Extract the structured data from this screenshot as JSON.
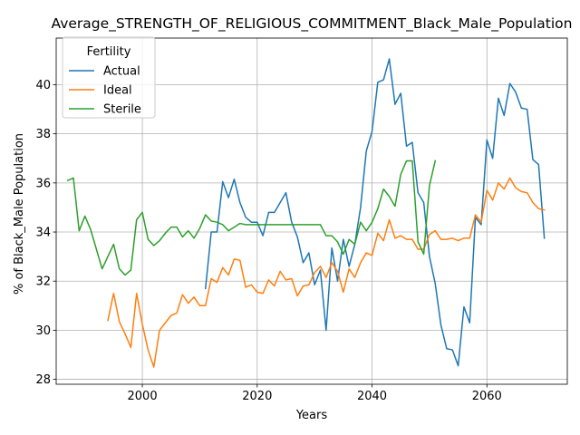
{
  "chart_data": {
    "type": "line",
    "title": "Average_STRENGTH_OF_RELIGIOUS_COMMITMENT_Black_Male_Population",
    "xlabel": "Years",
    "ylabel": "% of Black_Male Population",
    "xlim": [
      1985,
      2074
    ],
    "ylim": [
      27.8,
      41.9
    ],
    "xticks": [
      2000,
      2020,
      2040,
      2060
    ],
    "yticks": [
      28,
      30,
      32,
      34,
      36,
      38,
      40
    ],
    "grid": true,
    "legend": {
      "title": "Fertility",
      "placement": "top-left"
    },
    "series": [
      {
        "name": "Actual",
        "color": "#1f77b4",
        "points": [
          [
            2011,
            31.7
          ],
          [
            2012,
            34.0
          ],
          [
            2013,
            34.0
          ],
          [
            2014,
            36.05
          ],
          [
            2015,
            35.4
          ],
          [
            2016,
            36.15
          ],
          [
            2017,
            35.2
          ],
          [
            2018,
            34.6
          ],
          [
            2019,
            34.4
          ],
          [
            2020,
            34.4
          ],
          [
            2021,
            33.85
          ],
          [
            2022,
            34.8
          ],
          [
            2023,
            34.8
          ],
          [
            2024,
            35.2
          ],
          [
            2025,
            35.6
          ],
          [
            2026,
            34.4
          ],
          [
            2027,
            33.8
          ],
          [
            2028,
            32.75
          ],
          [
            2029,
            33.15
          ],
          [
            2030,
            31.85
          ],
          [
            2031,
            32.45
          ],
          [
            2032,
            30.0
          ],
          [
            2033,
            33.35
          ],
          [
            2034,
            32.0
          ],
          [
            2035,
            33.7
          ],
          [
            2036,
            32.6
          ],
          [
            2037,
            33.5
          ],
          [
            2038,
            35.0
          ],
          [
            2039,
            37.3
          ],
          [
            2040,
            38.1
          ],
          [
            2041,
            40.1
          ],
          [
            2042,
            40.2
          ],
          [
            2043,
            41.05
          ],
          [
            2044,
            39.2
          ],
          [
            2045,
            39.65
          ],
          [
            2046,
            37.5
          ],
          [
            2047,
            37.65
          ],
          [
            2048,
            35.6
          ],
          [
            2049,
            35.2
          ],
          [
            2050,
            33.0
          ],
          [
            2051,
            31.9
          ],
          [
            2052,
            30.2
          ],
          [
            2053,
            29.25
          ],
          [
            2054,
            29.2
          ],
          [
            2055,
            28.55
          ],
          [
            2056,
            30.95
          ],
          [
            2057,
            30.3
          ],
          [
            2058,
            34.6
          ],
          [
            2059,
            34.3
          ],
          [
            2060,
            37.75
          ],
          [
            2061,
            37.0
          ],
          [
            2062,
            39.45
          ],
          [
            2063,
            38.75
          ],
          [
            2064,
            40.05
          ],
          [
            2065,
            39.7
          ],
          [
            2066,
            39.05
          ],
          [
            2067,
            39.0
          ],
          [
            2068,
            36.95
          ],
          [
            2069,
            36.75
          ],
          [
            2070,
            33.75
          ]
        ]
      },
      {
        "name": "Ideal",
        "color": "#ff7f0e",
        "points": [
          [
            1994,
            30.4
          ],
          [
            1995,
            31.5
          ],
          [
            1996,
            30.35
          ],
          [
            1997,
            29.85
          ],
          [
            1998,
            29.3
          ],
          [
            1999,
            31.5
          ],
          [
            2000,
            30.25
          ],
          [
            2001,
            29.2
          ],
          [
            2002,
            28.5
          ],
          [
            2003,
            30.0
          ],
          [
            2004,
            30.3
          ],
          [
            2005,
            30.6
          ],
          [
            2006,
            30.7
          ],
          [
            2007,
            31.45
          ],
          [
            2008,
            31.1
          ],
          [
            2009,
            31.35
          ],
          [
            2010,
            31.0
          ],
          [
            2011,
            31.0
          ],
          [
            2012,
            32.1
          ],
          [
            2013,
            31.95
          ],
          [
            2014,
            32.55
          ],
          [
            2015,
            32.25
          ],
          [
            2016,
            32.9
          ],
          [
            2017,
            32.85
          ],
          [
            2018,
            31.75
          ],
          [
            2019,
            31.85
          ],
          [
            2020,
            31.55
          ],
          [
            2021,
            31.5
          ],
          [
            2022,
            32.05
          ],
          [
            2023,
            31.8
          ],
          [
            2024,
            32.4
          ],
          [
            2025,
            32.05
          ],
          [
            2026,
            32.1
          ],
          [
            2027,
            31.4
          ],
          [
            2028,
            31.8
          ],
          [
            2029,
            31.85
          ],
          [
            2030,
            32.35
          ],
          [
            2031,
            32.6
          ],
          [
            2032,
            32.15
          ],
          [
            2033,
            32.75
          ],
          [
            2034,
            32.4
          ],
          [
            2035,
            31.55
          ],
          [
            2036,
            32.5
          ],
          [
            2037,
            32.15
          ],
          [
            2038,
            32.75
          ],
          [
            2039,
            33.15
          ],
          [
            2040,
            33.05
          ],
          [
            2041,
            33.95
          ],
          [
            2042,
            33.65
          ],
          [
            2043,
            34.5
          ],
          [
            2044,
            33.75
          ],
          [
            2045,
            33.85
          ],
          [
            2046,
            33.7
          ],
          [
            2047,
            33.7
          ],
          [
            2048,
            33.3
          ],
          [
            2049,
            33.3
          ],
          [
            2050,
            33.9
          ],
          [
            2051,
            34.05
          ],
          [
            2052,
            33.7
          ],
          [
            2053,
            33.7
          ],
          [
            2054,
            33.75
          ],
          [
            2055,
            33.65
          ],
          [
            2056,
            33.75
          ],
          [
            2057,
            33.75
          ],
          [
            2058,
            34.7
          ],
          [
            2059,
            34.4
          ],
          [
            2060,
            35.7
          ],
          [
            2061,
            35.3
          ],
          [
            2062,
            36.0
          ],
          [
            2063,
            35.75
          ],
          [
            2064,
            36.2
          ],
          [
            2065,
            35.8
          ],
          [
            2066,
            35.65
          ],
          [
            2067,
            35.6
          ],
          [
            2068,
            35.2
          ],
          [
            2069,
            34.95
          ],
          [
            2070,
            34.9
          ]
        ]
      },
      {
        "name": "Sterile",
        "color": "#2ca02c",
        "points": [
          [
            1987,
            36.1
          ],
          [
            1988,
            36.2
          ],
          [
            1989,
            34.05
          ],
          [
            1990,
            34.65
          ],
          [
            1991,
            34.1
          ],
          [
            1992,
            33.3
          ],
          [
            1993,
            32.5
          ],
          [
            1994,
            33.0
          ],
          [
            1995,
            33.5
          ],
          [
            1996,
            32.5
          ],
          [
            1997,
            32.25
          ],
          [
            1998,
            32.45
          ],
          [
            1999,
            34.5
          ],
          [
            2000,
            34.8
          ],
          [
            2001,
            33.7
          ],
          [
            2002,
            33.45
          ],
          [
            2003,
            33.65
          ],
          [
            2004,
            33.95
          ],
          [
            2005,
            34.2
          ],
          [
            2006,
            34.2
          ],
          [
            2007,
            33.8
          ],
          [
            2008,
            34.05
          ],
          [
            2009,
            33.75
          ],
          [
            2010,
            34.15
          ],
          [
            2011,
            34.7
          ],
          [
            2012,
            34.45
          ],
          [
            2013,
            34.4
          ],
          [
            2014,
            34.3
          ],
          [
            2015,
            34.05
          ],
          [
            2016,
            34.2
          ],
          [
            2017,
            34.35
          ],
          [
            2018,
            34.3
          ],
          [
            2019,
            34.3
          ],
          [
            2020,
            34.3
          ],
          [
            2021,
            34.3
          ],
          [
            2022,
            34.3
          ],
          [
            2023,
            34.3
          ],
          [
            2024,
            34.3
          ],
          [
            2025,
            34.3
          ],
          [
            2026,
            34.3
          ],
          [
            2027,
            34.3
          ],
          [
            2028,
            34.3
          ],
          [
            2029,
            34.3
          ],
          [
            2030,
            34.3
          ],
          [
            2031,
            34.3
          ],
          [
            2032,
            33.85
          ],
          [
            2033,
            33.85
          ],
          [
            2034,
            33.6
          ],
          [
            2035,
            33.1
          ],
          [
            2036,
            33.7
          ],
          [
            2037,
            33.5
          ],
          [
            2038,
            34.4
          ],
          [
            2039,
            34.05
          ],
          [
            2040,
            34.4
          ],
          [
            2041,
            34.95
          ],
          [
            2042,
            35.75
          ],
          [
            2043,
            35.45
          ],
          [
            2044,
            35.05
          ],
          [
            2045,
            36.35
          ],
          [
            2046,
            36.9
          ],
          [
            2047,
            36.9
          ],
          [
            2048,
            33.6
          ],
          [
            2049,
            33.1
          ],
          [
            2050,
            35.9
          ],
          [
            2051,
            36.9
          ]
        ]
      }
    ]
  }
}
